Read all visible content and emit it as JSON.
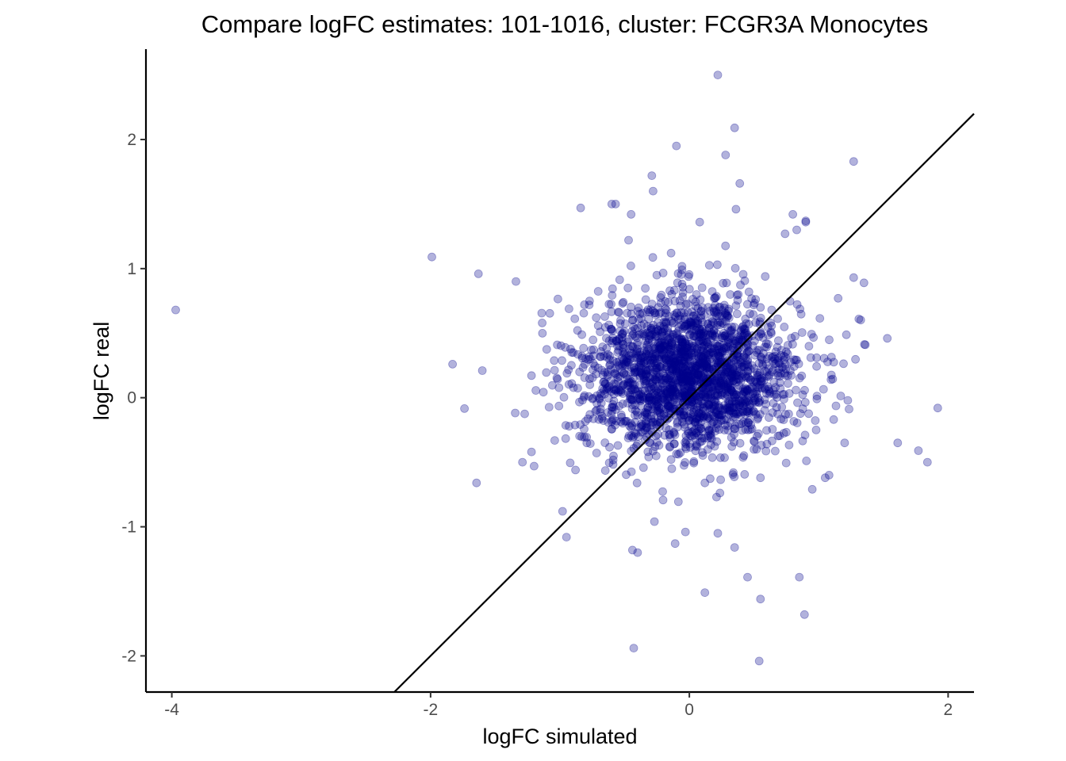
{
  "chart_data": {
    "type": "scatter",
    "title": "Compare logFC estimates: 101-1016, cluster: FCGR3A Monocytes",
    "xlabel": "logFC simulated",
    "ylabel": "logFC real",
    "xlim": [
      -4.2,
      2.2
    ],
    "ylim": [
      -2.28,
      2.7
    ],
    "x_ticks": [
      -4,
      -2,
      0,
      2
    ],
    "y_ticks": [
      -2,
      -1,
      0,
      1,
      2
    ],
    "x_tick_labels": [
      "-4",
      "-2",
      "0",
      "2"
    ],
    "y_tick_labels": [
      "-2",
      "-1",
      "0",
      "1",
      "2"
    ],
    "grid": false,
    "legend": "none",
    "reference_line": {
      "type": "identity",
      "slope": 1,
      "intercept": 0
    },
    "colors": {
      "point_fill": "#00008B",
      "point_opacity": 0.3,
      "line": "#000000",
      "axis": "#000000",
      "tick_text": "#4d4d4d"
    },
    "series": [
      {
        "x": [
          0.22,
          0.35,
          0.28,
          -0.1,
          1.27,
          -0.29,
          0.39,
          -0.28,
          0.36,
          -0.57,
          -0.84,
          -0.45,
          0.8,
          0.9,
          0.9,
          0.08,
          0.83,
          0.74,
          -1.99,
          -1.63,
          1.27,
          1.35,
          1.31,
          1.53,
          1.36,
          -1.34,
          1.15,
          1.92,
          1.77,
          1.84,
          1.61,
          -1.6,
          -1.83,
          -3.97,
          -1.29,
          -1.2,
          -1.22,
          -0.98,
          -0.95,
          -0.88,
          -0.44,
          -0.4,
          -0.27,
          -0.03,
          -0.11,
          0.22,
          0.12,
          0.35,
          0.45,
          0.34,
          0.55,
          0.85,
          0.89,
          0.54,
          0.55,
          -0.43,
          0.12,
          0.21,
          1.05,
          1.08,
          0.95,
          0.98,
          1.2,
          -0.72,
          -0.6,
          -0.47
        ],
        "y": [
          2.5,
          2.09,
          1.88,
          1.95,
          1.83,
          1.72,
          1.66,
          1.6,
          1.46,
          1.5,
          1.47,
          1.42,
          1.42,
          1.37,
          1.36,
          1.36,
          1.3,
          1.27,
          1.09,
          0.96,
          0.93,
          0.89,
          0.61,
          0.46,
          0.41,
          0.9,
          0.77,
          -0.08,
          -0.41,
          -0.5,
          -0.35,
          0.21,
          0.26,
          0.68,
          -0.5,
          -0.53,
          -0.42,
          -0.88,
          -1.08,
          -0.56,
          -1.18,
          -1.2,
          -0.96,
          -1.04,
          -1.13,
          -1.05,
          -1.51,
          -1.16,
          -1.39,
          -0.58,
          -1.56,
          -1.39,
          -1.68,
          -2.04,
          -0.62,
          -1.94,
          -0.66,
          -0.77,
          -0.62,
          -0.6,
          -0.71,
          -0.25,
          -0.35,
          0.62,
          1.5,
          1.22
        ]
      }
    ]
  }
}
